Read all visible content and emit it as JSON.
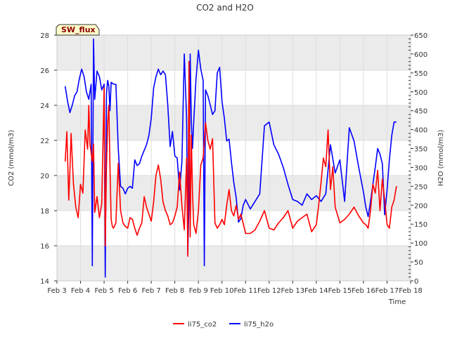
{
  "chart_data": {
    "type": "line",
    "title": "CO2 and H2O",
    "badge": "SW_flux",
    "xlabel": "Time",
    "ylabel_left": "CO2 (mmol/m3)",
    "ylabel_right": "H2O (mmol/m3)",
    "x_ticks": [
      "Feb 3",
      "Feb 4",
      "Feb 5",
      "Feb 6",
      "Feb 7",
      "Feb 8",
      "Feb 9",
      "Feb 10",
      "Feb 11",
      "Feb 12",
      "Feb 13",
      "Feb 14",
      "Feb 15",
      "Feb 16",
      "Feb 17",
      "Feb 18"
    ],
    "xlim": [
      3,
      18
    ],
    "ylim_left": [
      14,
      28
    ],
    "yticks_left": [
      14,
      16,
      18,
      20,
      22,
      24,
      26,
      28
    ],
    "ylim_right": [
      0,
      650
    ],
    "yticks_right": [
      0,
      50,
      100,
      150,
      200,
      250,
      300,
      350,
      400,
      450,
      500,
      550,
      600,
      650
    ],
    "legend_position": "bottom-center",
    "grid": true,
    "colors": {
      "co2": "#ff0000",
      "h2o": "#0000ff",
      "band": "#ebebeb"
    },
    "series": [
      {
        "name": "li75_co2",
        "axis": "left",
        "x": [
          3.35,
          3.42,
          3.5,
          3.55,
          3.6,
          3.7,
          3.8,
          3.9,
          4.0,
          4.1,
          4.2,
          4.3,
          4.35,
          4.4,
          4.5,
          4.55,
          4.6,
          4.7,
          4.8,
          4.9,
          5.0,
          5.05,
          5.1,
          5.15,
          5.2,
          5.25,
          5.3,
          5.35,
          5.4,
          5.5,
          5.6,
          5.7,
          5.8,
          5.9,
          6.0,
          6.1,
          6.2,
          6.3,
          6.4,
          6.5,
          6.6,
          6.7,
          6.8,
          6.9,
          7.0,
          7.1,
          7.2,
          7.3,
          7.4,
          7.5,
          7.6,
          7.7,
          7.8,
          7.9,
          8.0,
          8.1,
          8.2,
          8.3,
          8.4,
          8.5,
          8.55,
          8.6,
          8.65,
          8.7,
          8.75,
          8.8,
          8.9,
          9.0,
          9.1,
          9.2,
          9.3,
          9.4,
          9.5,
          9.6,
          9.7,
          9.8,
          9.9,
          10.0,
          10.1,
          10.2,
          10.3,
          10.4,
          10.5,
          10.6,
          10.7,
          10.8,
          11.0,
          11.2,
          11.4,
          11.6,
          11.8,
          12.0,
          12.2,
          12.4,
          12.6,
          12.8,
          13.0,
          13.2,
          13.4,
          13.6,
          13.8,
          14.0,
          14.1,
          14.2,
          14.3,
          14.4,
          14.5,
          14.6,
          14.7,
          14.8,
          15.0,
          15.2,
          15.4,
          15.6,
          15.8,
          16.0,
          16.1,
          16.2,
          16.3,
          16.4,
          16.5,
          16.6,
          16.7,
          16.8,
          16.9,
          17.0,
          17.1,
          17.2,
          17.3,
          17.4
        ],
        "y": [
          20.8,
          22.5,
          18.6,
          20.2,
          22.4,
          19.5,
          18.2,
          17.6,
          19.5,
          19.0,
          22.6,
          21.5,
          24.0,
          21.8,
          20.8,
          21.8,
          17.9,
          18.8,
          17.6,
          18.4,
          25.0,
          16.0,
          20.5,
          23.0,
          24.0,
          20.5,
          17.5,
          17.1,
          17.0,
          17.3,
          20.7,
          18.0,
          17.3,
          17.1,
          17.0,
          17.6,
          17.5,
          17.0,
          16.6,
          17.0,
          17.3,
          18.8,
          18.2,
          17.8,
          17.4,
          18.5,
          20.0,
          20.6,
          19.8,
          18.5,
          18.0,
          17.7,
          17.2,
          17.3,
          17.7,
          18.2,
          20.2,
          18.3,
          16.9,
          21.0,
          15.4,
          26.5,
          16.5,
          22.3,
          19.0,
          17.2,
          16.7,
          18.0,
          20.6,
          21.0,
          23.0,
          22.0,
          21.5,
          22.1,
          17.3,
          17.0,
          17.2,
          17.5,
          17.2,
          18.3,
          19.2,
          18.0,
          17.7,
          18.3,
          17.5,
          17.8,
          16.7,
          16.7,
          16.9,
          17.4,
          18.0,
          17.0,
          16.9,
          17.3,
          17.6,
          18.0,
          17.0,
          17.4,
          17.6,
          17.8,
          16.8,
          17.2,
          18.3,
          19.6,
          21.0,
          20.5,
          22.6,
          19.2,
          20.5,
          18.2,
          17.3,
          17.5,
          17.8,
          18.2,
          17.7,
          17.3,
          17.2,
          17.0,
          18.0,
          19.5,
          19.0,
          20.3,
          18.0,
          19.8,
          18.6,
          17.2,
          17.0,
          18.2,
          18.6,
          19.4
        ]
      },
      {
        "name": "li75_h2o",
        "axis": "right",
        "x": [
          3.35,
          3.45,
          3.55,
          3.65,
          3.75,
          3.85,
          3.95,
          4.05,
          4.15,
          4.25,
          4.35,
          4.45,
          4.5,
          4.55,
          4.6,
          4.7,
          4.8,
          4.9,
          5.0,
          5.05,
          5.1,
          5.15,
          5.2,
          5.25,
          5.3,
          5.4,
          5.5,
          5.6,
          5.7,
          5.8,
          5.9,
          6.0,
          6.1,
          6.2,
          6.3,
          6.4,
          6.5,
          6.6,
          6.7,
          6.8,
          6.9,
          7.0,
          7.1,
          7.2,
          7.3,
          7.4,
          7.5,
          7.6,
          7.7,
          7.8,
          7.9,
          8.0,
          8.1,
          8.2,
          8.3,
          8.4,
          8.5,
          8.55,
          8.6,
          8.65,
          8.7,
          8.75,
          8.8,
          8.9,
          9.0,
          9.1,
          9.2,
          9.25,
          9.3,
          9.4,
          9.5,
          9.6,
          9.7,
          9.8,
          9.9,
          10.0,
          10.1,
          10.2,
          10.3,
          10.4,
          10.5,
          10.6,
          10.7,
          10.8,
          10.9,
          11.0,
          11.2,
          11.4,
          11.6,
          11.8,
          12.0,
          12.2,
          12.4,
          12.6,
          12.8,
          13.0,
          13.2,
          13.4,
          13.6,
          13.8,
          14.0,
          14.2,
          14.4,
          14.6,
          14.8,
          15.0,
          15.2,
          15.4,
          15.6,
          15.8,
          16.0,
          16.1,
          16.2,
          16.3,
          16.4,
          16.5,
          16.6,
          16.7,
          16.8,
          16.9,
          17.0,
          17.1,
          17.2,
          17.3,
          17.4
        ],
        "y": [
          515,
          475,
          445,
          465,
          490,
          500,
          535,
          560,
          540,
          500,
          480,
          520,
          40,
          640,
          480,
          555,
          540,
          505,
          520,
          10,
          495,
          530,
          515,
          450,
          525,
          520,
          520,
          350,
          250,
          245,
          230,
          245,
          250,
          245,
          320,
          305,
          310,
          330,
          345,
          360,
          385,
          430,
          510,
          540,
          560,
          545,
          555,
          545,
          465,
          355,
          395,
          330,
          325,
          240,
          315,
          600,
          430,
          70,
          215,
          600,
          420,
          350,
          420,
          535,
          610,
          560,
          530,
          40,
          505,
          490,
          465,
          440,
          450,
          550,
          565,
          475,
          430,
          370,
          375,
          315,
          260,
          220,
          155,
          165,
          200,
          215,
          190,
          210,
          230,
          410,
          420,
          360,
          335,
          300,
          255,
          215,
          210,
          200,
          230,
          215,
          225,
          210,
          230,
          360,
          285,
          320,
          210,
          405,
          370,
          300,
          235,
          195,
          170,
          210,
          255,
          300,
          350,
          335,
          310,
          175,
          240,
          320,
          385,
          420,
          420
        ]
      }
    ],
    "legend": [
      {
        "label": "li75_co2",
        "color": "#ff0000"
      },
      {
        "label": "li75_h2o",
        "color": "#0000ff"
      }
    ]
  }
}
